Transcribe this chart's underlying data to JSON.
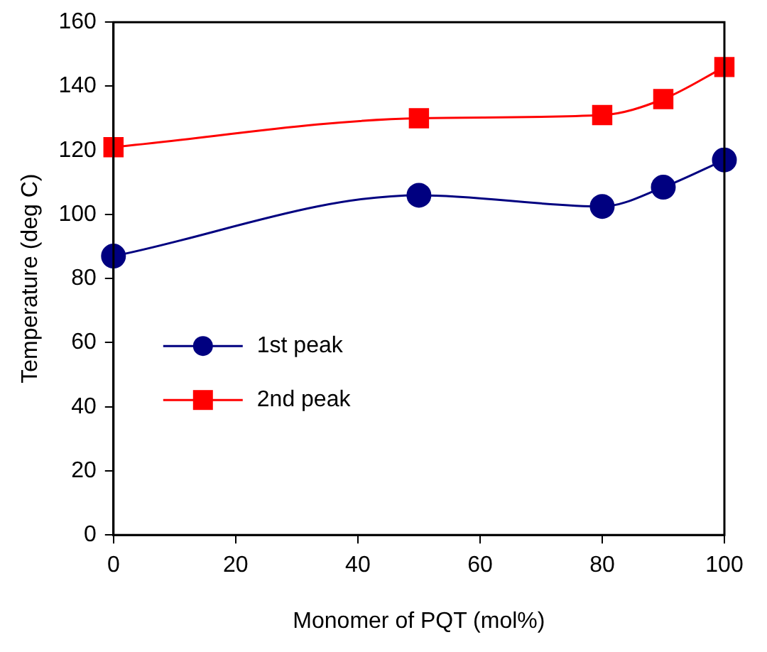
{
  "chart_data": {
    "type": "line",
    "xlabel": "Monomer of PQT (mol%)",
    "ylabel": "Temperature (deg C)",
    "x": [
      0,
      50,
      80,
      90,
      100
    ],
    "series": [
      {
        "name": "1st peak",
        "color": "#000080",
        "marker": "circle",
        "values": [
          87,
          106,
          102.5,
          108.5,
          117
        ]
      },
      {
        "name": "2nd peak",
        "color": "#ff0000",
        "marker": "square",
        "values": [
          121,
          130,
          131,
          136,
          146
        ]
      }
    ],
    "xlim": [
      0,
      100
    ],
    "xticks": [
      0,
      20,
      40,
      60,
      80,
      100
    ],
    "ylim": [
      0,
      160
    ],
    "yticks": [
      0,
      20,
      40,
      60,
      80,
      100,
      120,
      140,
      160
    ],
    "grid": false,
    "legend": "bottom left"
  }
}
